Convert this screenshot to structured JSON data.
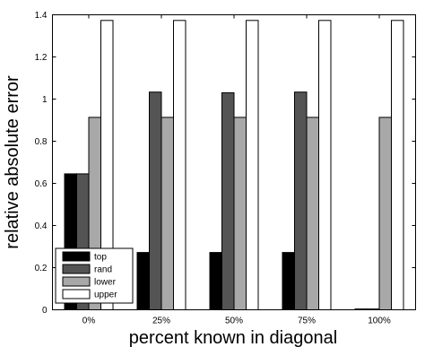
{
  "chart_data": {
    "type": "bar",
    "xlabel": "percent known in diagonal",
    "ylabel": "relative absolute error",
    "categories": [
      "0%",
      "25%",
      "50%",
      "75%",
      "100%"
    ],
    "ylim": [
      0,
      1.4
    ],
    "yticks": [
      "0",
      "0.2",
      "0.4",
      "0.6",
      "0.8",
      "1",
      "1.2",
      "1.4"
    ],
    "grid": false,
    "legend_position": "bottom-left",
    "series": [
      {
        "name": "top",
        "color": "#000000",
        "values": [
          0.645,
          0.272,
          0.272,
          0.272,
          0.004
        ]
      },
      {
        "name": "rand",
        "color": "#545454",
        "values": [
          0.645,
          1.033,
          1.03,
          1.033,
          0.004
        ]
      },
      {
        "name": "lower",
        "color": "#a8a8a8",
        "values": [
          0.913,
          0.913,
          0.913,
          0.913,
          0.913
        ]
      },
      {
        "name": "upper",
        "color": "#ffffff",
        "values": [
          1.373,
          1.373,
          1.373,
          1.373,
          1.373
        ]
      }
    ]
  }
}
